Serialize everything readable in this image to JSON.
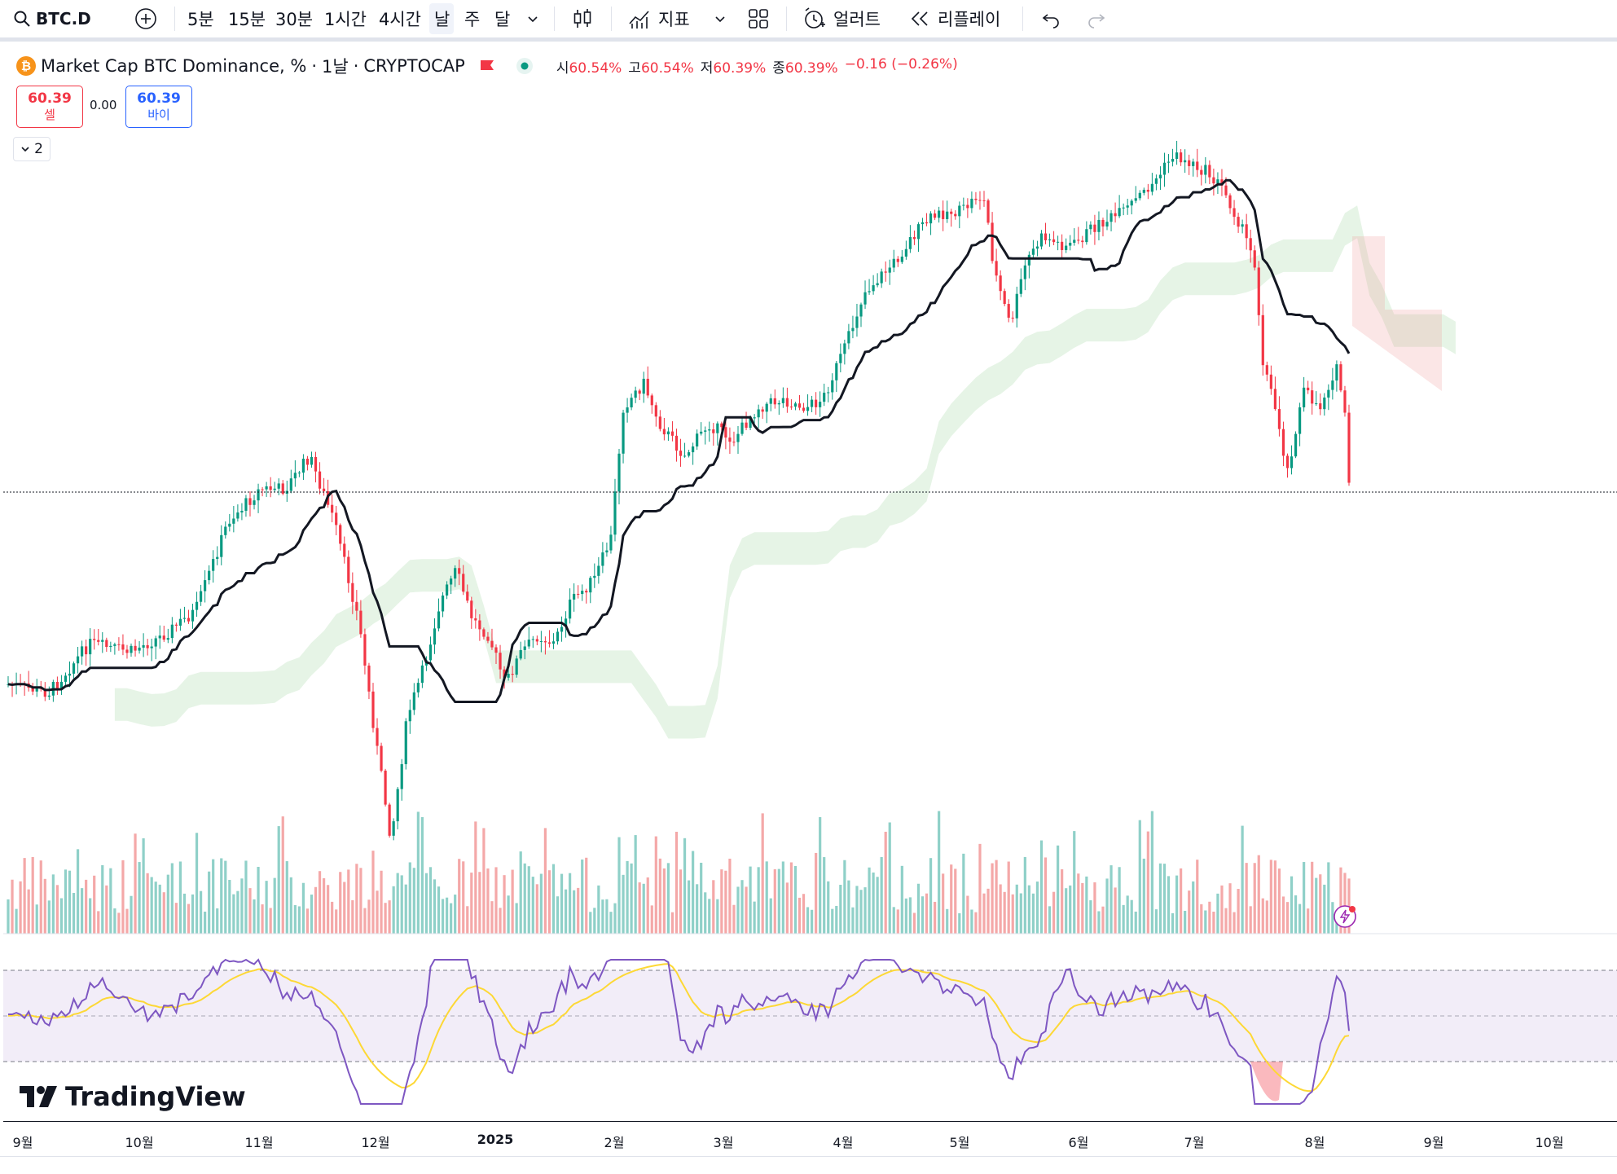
{
  "toolbar": {
    "symbol": "BTC.D",
    "intervals": [
      "5분",
      "15분",
      "30분",
      "1시간",
      "4시간",
      "날",
      "주",
      "달"
    ],
    "selected_interval": "날",
    "indicators_label": "지표",
    "alert_label": "얼러트",
    "replay_label": "리플레이"
  },
  "legend": {
    "title": "Market Cap BTC Dominance, %",
    "interval": "1날",
    "exchange": "CRYPTOCAP",
    "ohlc": [
      {
        "k": "시",
        "v": "60.54%"
      },
      {
        "k": "고",
        "v": "60.54%"
      },
      {
        "k": "저",
        "v": "60.39%"
      },
      {
        "k": "종",
        "v": "60.39%"
      }
    ],
    "change": "−0.16 (−0.26%)"
  },
  "trade": {
    "sell_price": "60.39",
    "sell_label": "셀",
    "spread": "0.00",
    "buy_price": "60.39",
    "buy_label": "바이"
  },
  "collapse_count": "2",
  "x_axis": [
    "9월",
    "10월",
    "11월",
    "12월",
    "2025",
    "2월",
    "3월",
    "4월",
    "5월",
    "6월",
    "7월",
    "8월",
    "9월",
    "10월"
  ],
  "logo_text": "TradingView",
  "colors": {
    "up": "#089981",
    "down": "#f23645",
    "up_vol": "#8fd0c8",
    "down_vol": "#f4a8a8",
    "rsi": "#7e57c2",
    "rsi_ma": "#fdd835",
    "baseline": "#131722"
  },
  "chart_data": {
    "type": "candlestick",
    "symbol": "BTC.D",
    "last_close": 60.39,
    "price_anchors": [
      {
        "label": "9월",
        "close": 56.6
      },
      {
        "label": "11월 mid",
        "close": 61.0
      },
      {
        "label": "12월 low",
        "close": 54.2
      },
      {
        "label": "2월",
        "close": 61.5
      },
      {
        "label": "5월",
        "close": 64.8
      },
      {
        "label": "6월 end",
        "close": 65.7
      },
      {
        "label": "8월",
        "close": 60.39
      }
    ]
  }
}
